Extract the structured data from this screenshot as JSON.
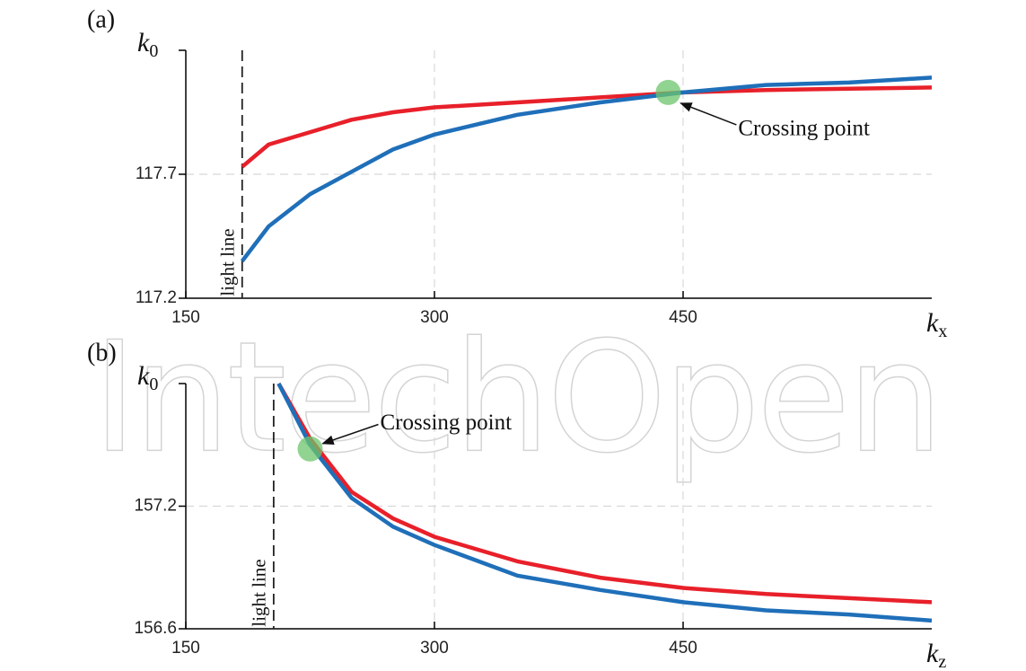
{
  "watermark": "IntechOpen",
  "chart_data": [
    {
      "type": "line",
      "panel_label": "(a)",
      "xlabel": {
        "base": "k",
        "sub": "x"
      },
      "ylabel": {
        "base": "k",
        "sub": "0"
      },
      "xlim": [
        150,
        600
      ],
      "ylim": [
        117.2,
        118.2
      ],
      "xticks": [
        150,
        300,
        450
      ],
      "yticks": [
        117.2,
        117.7
      ],
      "grid": true,
      "series": [
        {
          "name": "red",
          "color": "#e8202a",
          "x": [
            184,
            200,
            225,
            250,
            275,
            300,
            350,
            400,
            450,
            500,
            550,
            600
          ],
          "values": [
            117.73,
            117.82,
            117.87,
            117.92,
            117.95,
            117.97,
            117.99,
            118.01,
            118.03,
            118.04,
            118.045,
            118.05
          ]
        },
        {
          "name": "blue",
          "color": "#1f6fb9",
          "x": [
            184,
            200,
            225,
            250,
            275,
            300,
            350,
            400,
            450,
            500,
            550,
            600
          ],
          "values": [
            117.35,
            117.49,
            117.62,
            117.71,
            117.8,
            117.86,
            117.94,
            117.99,
            118.03,
            118.06,
            118.07,
            118.09
          ]
        }
      ],
      "light_line": {
        "x": 184,
        "label": "light line"
      },
      "crossing": {
        "x": 441,
        "y": 118.03,
        "label": "Crossing point"
      }
    },
    {
      "type": "line",
      "panel_label": "(b)",
      "xlabel": {
        "base": "k",
        "sub": "z"
      },
      "ylabel": {
        "base": "k",
        "sub": "0"
      },
      "xlim": [
        150,
        600
      ],
      "ylim": [
        156.6,
        157.8
      ],
      "xticks": [
        150,
        300,
        450
      ],
      "yticks": [
        156.6,
        157.2
      ],
      "grid": true,
      "series": [
        {
          "name": "red",
          "color": "#e8202a",
          "x": [
            206,
            225,
            250,
            275,
            300,
            350,
            400,
            450,
            500,
            550,
            600
          ],
          "values": [
            157.8,
            157.53,
            157.27,
            157.14,
            157.05,
            156.93,
            156.85,
            156.8,
            156.77,
            156.75,
            156.73
          ]
        },
        {
          "name": "blue",
          "color": "#1f6fb9",
          "x": [
            206,
            225,
            250,
            275,
            300,
            350,
            400,
            450,
            500,
            550,
            600
          ],
          "values": [
            157.8,
            157.5,
            157.24,
            157.1,
            157.01,
            156.86,
            156.79,
            156.73,
            156.69,
            156.67,
            156.64
          ]
        }
      ],
      "light_line": {
        "x": 203,
        "label": "light line"
      },
      "crossing": {
        "x": 225,
        "y": 157.48,
        "label": "Crossing point"
      }
    }
  ]
}
